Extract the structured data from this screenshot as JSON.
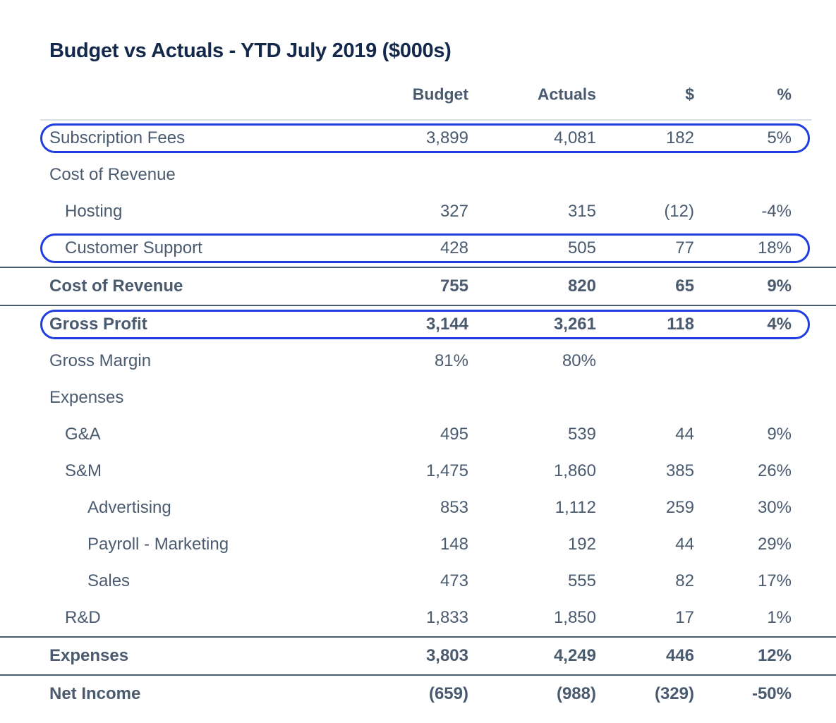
{
  "title": "Budget vs Actuals - YTD July 2019 ($000s)",
  "columns": [
    "Budget",
    "Actuals",
    "$",
    "%"
  ],
  "colors": {
    "text": "#4a5b70",
    "title": "#14284b",
    "highlight": "#1f3de0",
    "rule": "#d8dee5"
  },
  "rows": [
    {
      "label": "Subscription Fees",
      "level": 0,
      "bold": false,
      "topline": false,
      "highlight": true,
      "values": [
        "3,899",
        "4,081",
        "182",
        "5%"
      ]
    },
    {
      "label": "Cost of Revenue",
      "level": 0,
      "bold": false,
      "topline": false,
      "highlight": false,
      "values": [
        "",
        "",
        "",
        ""
      ]
    },
    {
      "label": "Hosting",
      "level": 1,
      "bold": false,
      "topline": false,
      "highlight": false,
      "values": [
        "327",
        "315",
        "(12)",
        "-4%"
      ]
    },
    {
      "label": "Customer Support",
      "level": 1,
      "bold": false,
      "topline": false,
      "highlight": true,
      "values": [
        "428",
        "505",
        "77",
        "18%"
      ]
    },
    {
      "label": "Cost of Revenue",
      "level": 0,
      "bold": true,
      "topline": true,
      "highlight": false,
      "values": [
        "755",
        "820",
        "65",
        "9%"
      ]
    },
    {
      "label": "Gross Profit",
      "level": 0,
      "bold": true,
      "topline": true,
      "highlight": true,
      "values": [
        "3,144",
        "3,261",
        "118",
        "4%"
      ]
    },
    {
      "label": "Gross Margin",
      "level": 0,
      "bold": false,
      "topline": false,
      "highlight": false,
      "values": [
        "81%",
        "80%",
        "",
        ""
      ]
    },
    {
      "label": "Expenses",
      "level": 0,
      "bold": false,
      "topline": false,
      "highlight": false,
      "values": [
        "",
        "",
        "",
        ""
      ]
    },
    {
      "label": "G&A",
      "level": 1,
      "bold": false,
      "topline": false,
      "highlight": false,
      "values": [
        "495",
        "539",
        "44",
        "9%"
      ]
    },
    {
      "label": "S&M",
      "level": 1,
      "bold": false,
      "topline": false,
      "highlight": false,
      "values": [
        "1,475",
        "1,860",
        "385",
        "26%"
      ]
    },
    {
      "label": "Advertising",
      "level": 2,
      "bold": false,
      "topline": false,
      "highlight": false,
      "values": [
        "853",
        "1,112",
        "259",
        "30%"
      ]
    },
    {
      "label": "Payroll - Marketing",
      "level": 2,
      "bold": false,
      "topline": false,
      "highlight": false,
      "values": [
        "148",
        "192",
        "44",
        "29%"
      ]
    },
    {
      "label": "Sales",
      "level": 2,
      "bold": false,
      "topline": false,
      "highlight": false,
      "values": [
        "473",
        "555",
        "82",
        "17%"
      ]
    },
    {
      "label": "R&D",
      "level": 1,
      "bold": false,
      "topline": false,
      "highlight": false,
      "values": [
        "1,833",
        "1,850",
        "17",
        "1%"
      ]
    },
    {
      "label": "Expenses",
      "level": 0,
      "bold": true,
      "topline": true,
      "highlight": false,
      "values": [
        "3,803",
        "4,249",
        "446",
        "12%"
      ]
    },
    {
      "label": "Net Income",
      "level": 0,
      "bold": true,
      "topline": true,
      "highlight": false,
      "values": [
        "(659)",
        "(988)",
        "(329)",
        "-50%"
      ]
    }
  ]
}
